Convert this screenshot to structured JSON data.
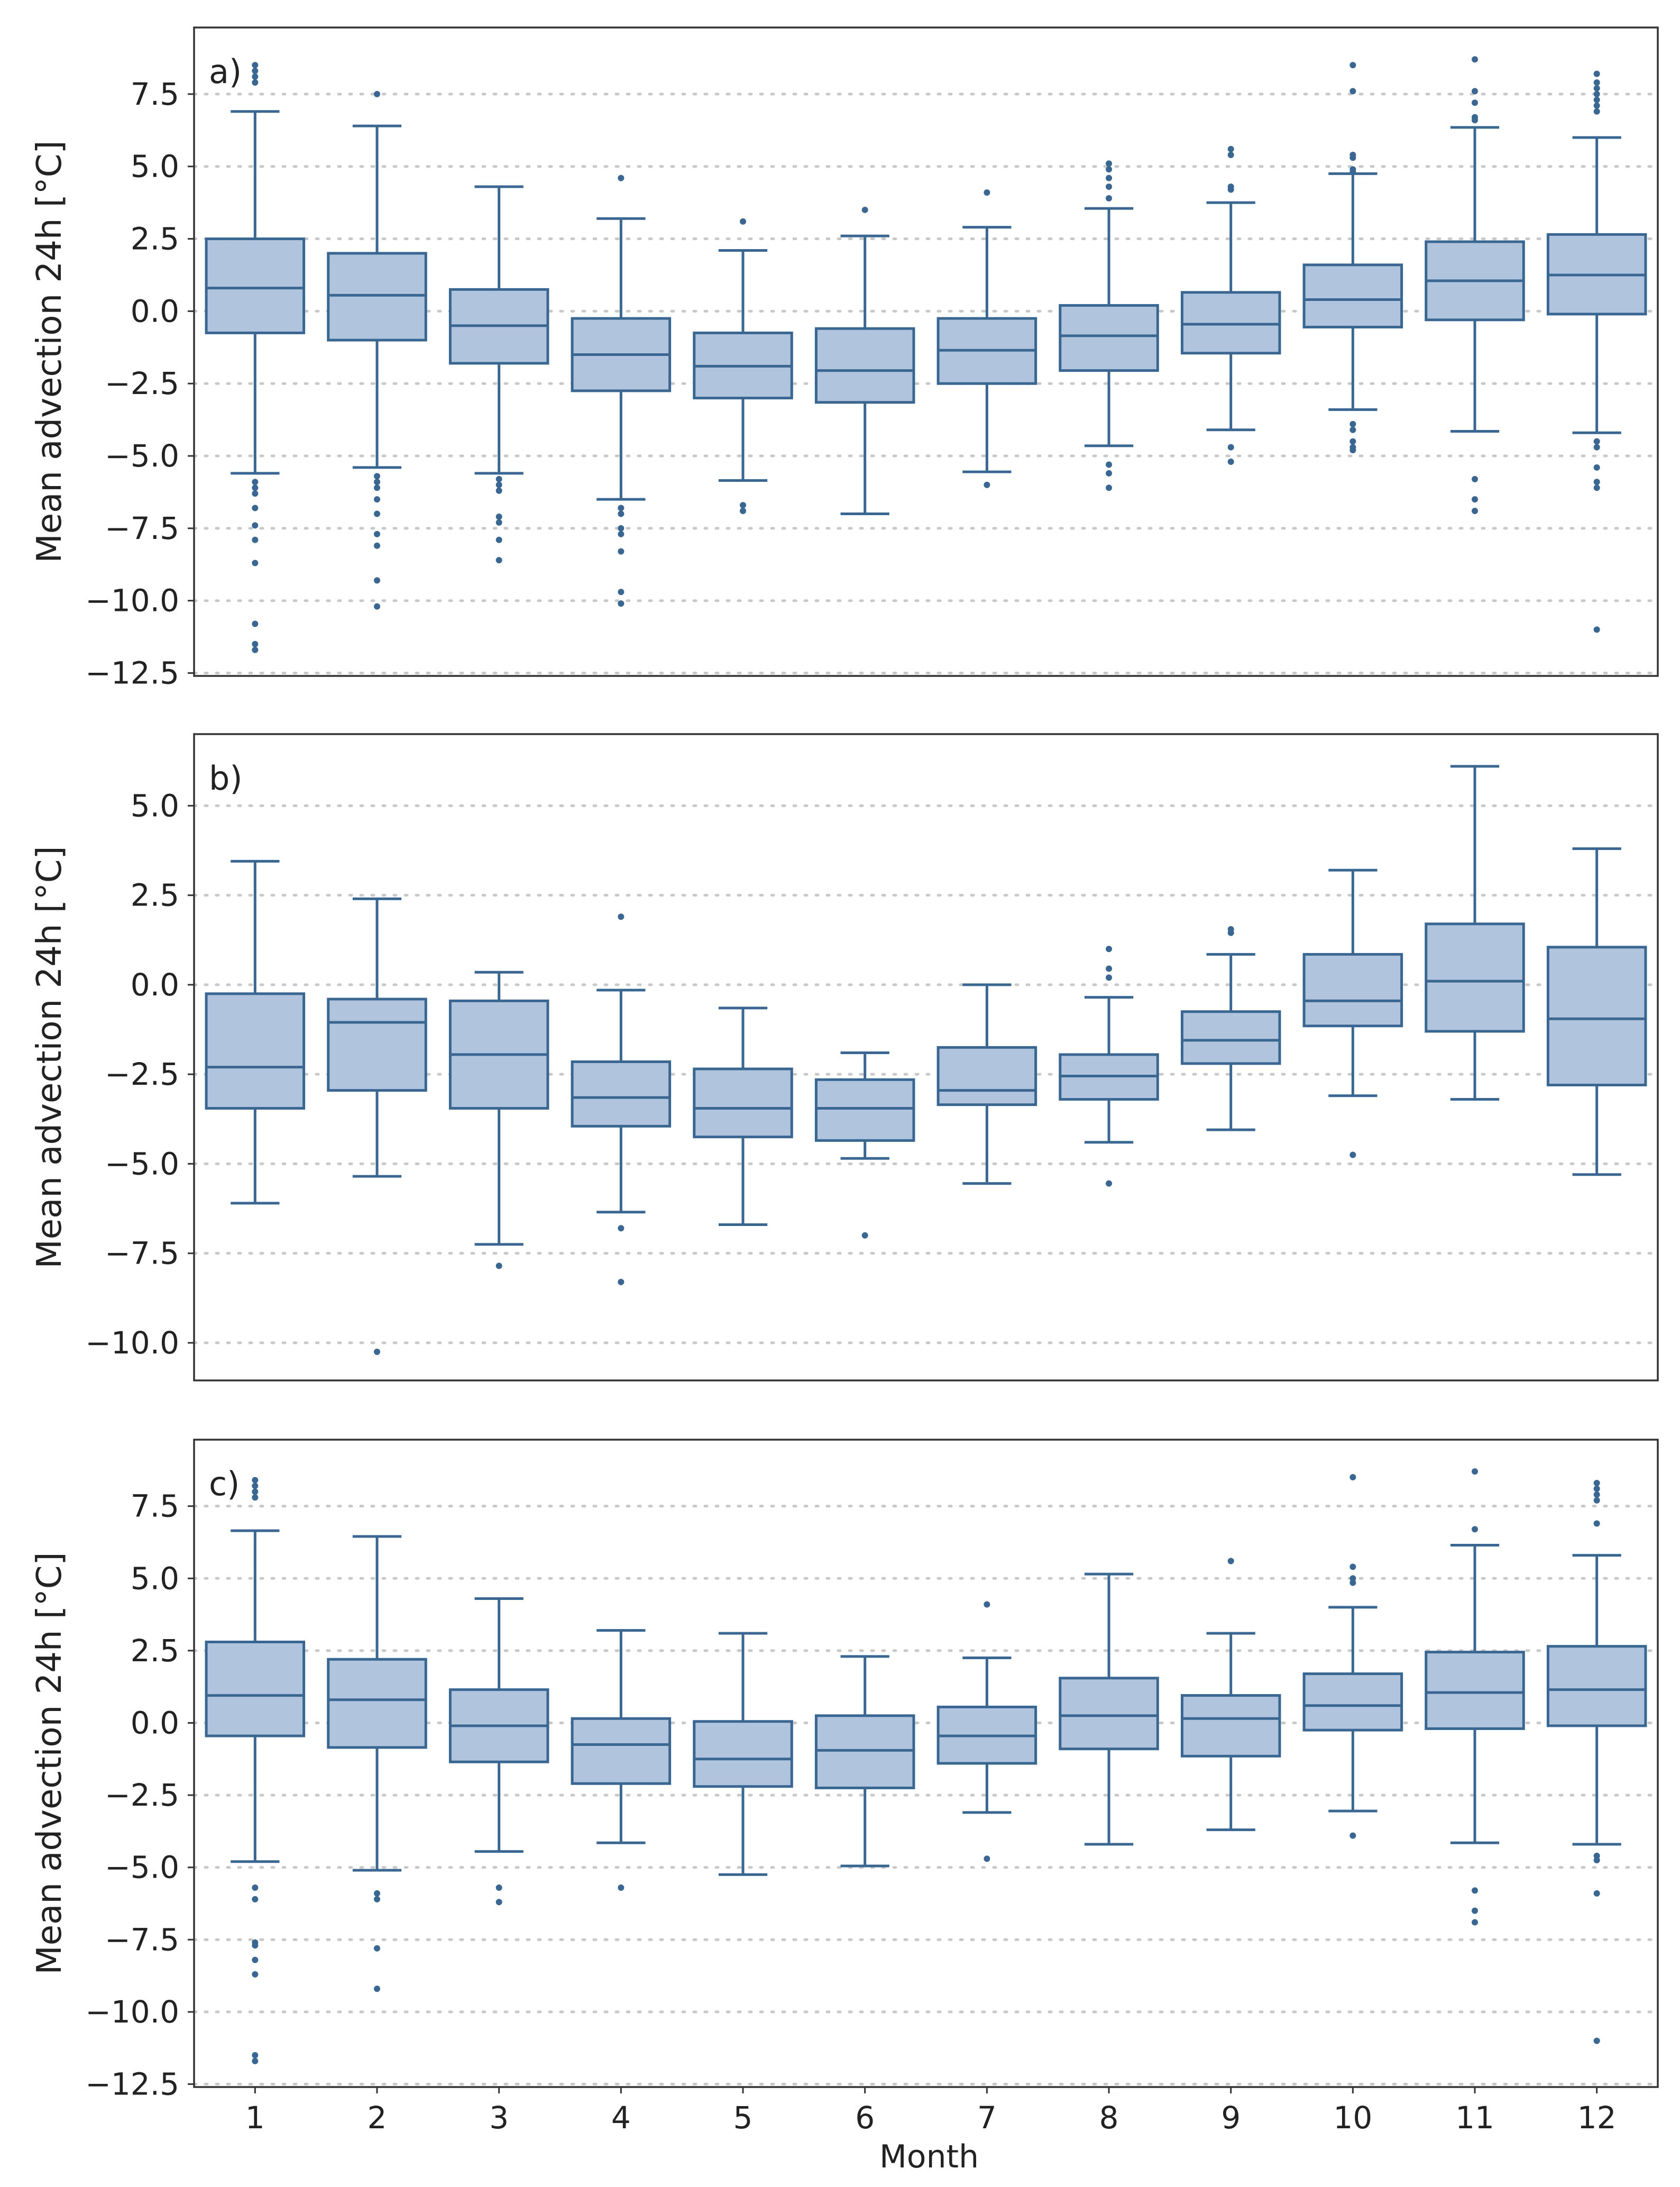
{
  "figure": {
    "xlabel": "Month",
    "colors": {
      "box_fill": "#b0c4de",
      "line": "#3a6791",
      "grid": "#c8c8c8",
      "frame": "#333333"
    }
  },
  "chart_data": [
    {
      "type": "boxplot",
      "panel_label": "a)",
      "ylabel": "Mean advection 24h [°C]",
      "xlabel": "",
      "ylim": [
        -12.6,
        9.8
      ],
      "yticks": [
        7.5,
        5.0,
        2.5,
        0.0,
        -2.5,
        -5.0,
        -7.5,
        -10.0,
        -12.5
      ],
      "ytick_labels": [
        "7.5",
        "5.0",
        "2.5",
        "0.0",
        "−2.5",
        "−5.0",
        "−7.5",
        "−10.0",
        "−12.5"
      ],
      "grid": "horizontal-dotted",
      "categories": [
        "1",
        "2",
        "3",
        "4",
        "5",
        "6",
        "7",
        "8",
        "9",
        "10",
        "11",
        "12"
      ],
      "boxes": [
        {
          "whislo": -5.6,
          "q1": -0.75,
          "med": 0.8,
          "q3": 2.5,
          "whishi": 6.9,
          "fliers": [
            8.5,
            8.3,
            8.1,
            7.9,
            -5.9,
            -6.1,
            -6.3,
            -6.8,
            -7.4,
            -7.9,
            -8.7,
            -10.8,
            -11.5,
            -11.7
          ]
        },
        {
          "whislo": -5.4,
          "q1": -1.0,
          "med": 0.55,
          "q3": 2.0,
          "whishi": 6.4,
          "fliers": [
            7.5,
            -5.7,
            -5.9,
            -6.1,
            -6.5,
            -7.0,
            -7.7,
            -8.1,
            -9.3,
            -10.2
          ]
        },
        {
          "whislo": -5.6,
          "q1": -1.8,
          "med": -0.5,
          "q3": 0.75,
          "whishi": 4.3,
          "fliers": [
            -5.8,
            -6.0,
            -6.2,
            -7.1,
            -7.3,
            -7.9,
            -8.6
          ]
        },
        {
          "whislo": -6.5,
          "q1": -2.75,
          "med": -1.5,
          "q3": -0.25,
          "whishi": 3.2,
          "fliers": [
            4.6,
            -6.8,
            -7.0,
            -7.5,
            -7.7,
            -8.3,
            -9.7,
            -10.1
          ]
        },
        {
          "whislo": -5.85,
          "q1": -3.0,
          "med": -1.9,
          "q3": -0.75,
          "whishi": 2.1,
          "fliers": [
            3.1,
            -6.7,
            -6.9
          ]
        },
        {
          "whislo": -7.0,
          "q1": -3.15,
          "med": -2.05,
          "q3": -0.6,
          "whishi": 2.6,
          "fliers": [
            3.5
          ]
        },
        {
          "whislo": -5.55,
          "q1": -2.5,
          "med": -1.35,
          "q3": -0.25,
          "whishi": 2.9,
          "fliers": [
            4.1,
            -6.0
          ]
        },
        {
          "whislo": -4.65,
          "q1": -2.05,
          "med": -0.85,
          "q3": 0.2,
          "whishi": 3.55,
          "fliers": [
            3.9,
            4.3,
            4.6,
            4.9,
            5.1,
            -5.3,
            -5.6,
            -6.1
          ]
        },
        {
          "whislo": -4.1,
          "q1": -1.45,
          "med": -0.45,
          "q3": 0.65,
          "whishi": 3.75,
          "fliers": [
            4.2,
            4.3,
            5.4,
            5.6,
            -4.7,
            -5.2
          ]
        },
        {
          "whislo": -3.4,
          "q1": -0.55,
          "med": 0.4,
          "q3": 1.6,
          "whishi": 4.75,
          "fliers": [
            4.8,
            4.9,
            5.3,
            5.4,
            7.6,
            8.5,
            -3.9,
            -4.1,
            -4.5,
            -4.7,
            -4.8
          ]
        },
        {
          "whislo": -4.15,
          "q1": -0.3,
          "med": 1.05,
          "q3": 2.4,
          "whishi": 6.35,
          "fliers": [
            6.6,
            6.7,
            7.2,
            7.6,
            8.7,
            -5.8,
            -6.5,
            -6.9
          ]
        },
        {
          "whislo": -4.2,
          "q1": -0.1,
          "med": 1.25,
          "q3": 2.65,
          "whishi": 6.0,
          "fliers": [
            6.9,
            7.1,
            7.3,
            7.5,
            7.7,
            7.9,
            8.2,
            -4.5,
            -4.7,
            -5.4,
            -5.9,
            -6.1,
            -11.0
          ]
        }
      ]
    },
    {
      "type": "boxplot",
      "panel_label": "b)",
      "ylabel": "Mean advection 24h [°C]",
      "xlabel": "",
      "ylim": [
        -11.05,
        7.0
      ],
      "yticks": [
        5.0,
        2.5,
        0.0,
        -2.5,
        -5.0,
        -7.5,
        -10.0
      ],
      "ytick_labels": [
        "5.0",
        "2.5",
        "0.0",
        "−2.5",
        "−5.0",
        "−7.5",
        "−10.0"
      ],
      "grid": "horizontal-dotted",
      "categories": [
        "1",
        "2",
        "3",
        "4",
        "5",
        "6",
        "7",
        "8",
        "9",
        "10",
        "11",
        "12"
      ],
      "boxes": [
        {
          "whislo": -6.1,
          "q1": -3.45,
          "med": -2.3,
          "q3": -0.25,
          "whishi": 3.45,
          "fliers": []
        },
        {
          "whislo": -5.35,
          "q1": -2.95,
          "med": -1.05,
          "q3": -0.4,
          "whishi": 2.4,
          "fliers": [
            -10.25
          ]
        },
        {
          "whislo": -7.25,
          "q1": -3.45,
          "med": -1.95,
          "q3": -0.45,
          "whishi": 0.35,
          "fliers": [
            -7.85
          ]
        },
        {
          "whislo": -6.35,
          "q1": -3.95,
          "med": -3.15,
          "q3": -2.15,
          "whishi": -0.15,
          "fliers": [
            1.9,
            -6.8,
            -8.3
          ]
        },
        {
          "whislo": -6.7,
          "q1": -4.25,
          "med": -3.45,
          "q3": -2.35,
          "whishi": -0.65,
          "fliers": []
        },
        {
          "whislo": -4.85,
          "q1": -4.35,
          "med": -3.45,
          "q3": -2.65,
          "whishi": -1.9,
          "fliers": [
            -7.0
          ]
        },
        {
          "whislo": -5.55,
          "q1": -3.35,
          "med": -2.95,
          "q3": -1.75,
          "whishi": 0.0,
          "fliers": []
        },
        {
          "whislo": -4.4,
          "q1": -3.2,
          "med": -2.55,
          "q3": -1.95,
          "whishi": -0.35,
          "fliers": [
            0.2,
            0.45,
            1.0,
            -5.55
          ]
        },
        {
          "whislo": -4.05,
          "q1": -2.2,
          "med": -1.55,
          "q3": -0.75,
          "whishi": 0.85,
          "fliers": [
            1.45,
            1.55
          ]
        },
        {
          "whislo": -3.1,
          "q1": -1.15,
          "med": -0.45,
          "q3": 0.85,
          "whishi": 3.2,
          "fliers": [
            -4.75
          ]
        },
        {
          "whislo": -3.2,
          "q1": -1.3,
          "med": 0.1,
          "q3": 1.7,
          "whishi": 6.1,
          "fliers": []
        },
        {
          "whislo": -5.3,
          "q1": -2.8,
          "med": -0.95,
          "q3": 1.05,
          "whishi": 3.8,
          "fliers": []
        }
      ]
    },
    {
      "type": "boxplot",
      "panel_label": "c)",
      "ylabel": "Mean advection 24h [°C]",
      "xlabel": "Month",
      "ylim": [
        -12.6,
        9.8
      ],
      "yticks": [
        7.5,
        5.0,
        2.5,
        0.0,
        -2.5,
        -5.0,
        -7.5,
        -10.0,
        -12.5
      ],
      "ytick_labels": [
        "7.5",
        "5.0",
        "2.5",
        "0.0",
        "−2.5",
        "−5.0",
        "−7.5",
        "−10.0",
        "−12.5"
      ],
      "grid": "horizontal-dotted",
      "categories": [
        "1",
        "2",
        "3",
        "4",
        "5",
        "6",
        "7",
        "8",
        "9",
        "10",
        "11",
        "12"
      ],
      "boxes": [
        {
          "whislo": -4.8,
          "q1": -0.45,
          "med": 0.95,
          "q3": 2.8,
          "whishi": 6.65,
          "fliers": [
            8.4,
            8.2,
            8.0,
            7.8,
            -5.7,
            -6.1,
            -7.6,
            -7.7,
            -8.2,
            -8.7,
            -11.5,
            -11.7
          ]
        },
        {
          "whislo": -5.1,
          "q1": -0.85,
          "med": 0.8,
          "q3": 2.2,
          "whishi": 6.45,
          "fliers": [
            -5.9,
            -6.1,
            -7.8,
            -9.2
          ]
        },
        {
          "whislo": -4.45,
          "q1": -1.35,
          "med": -0.1,
          "q3": 1.15,
          "whishi": 4.3,
          "fliers": [
            -5.7,
            -6.2
          ]
        },
        {
          "whislo": -4.15,
          "q1": -2.1,
          "med": -0.75,
          "q3": 0.15,
          "whishi": 3.2,
          "fliers": [
            -5.7
          ]
        },
        {
          "whislo": -5.25,
          "q1": -2.2,
          "med": -1.25,
          "q3": 0.05,
          "whishi": 3.1,
          "fliers": []
        },
        {
          "whislo": -4.95,
          "q1": -2.25,
          "med": -0.95,
          "q3": 0.25,
          "whishi": 2.3,
          "fliers": []
        },
        {
          "whislo": -3.1,
          "q1": -1.4,
          "med": -0.45,
          "q3": 0.55,
          "whishi": 2.25,
          "fliers": [
            4.1,
            -4.7
          ]
        },
        {
          "whislo": -4.2,
          "q1": -0.9,
          "med": 0.25,
          "q3": 1.55,
          "whishi": 5.15,
          "fliers": []
        },
        {
          "whislo": -3.7,
          "q1": -1.15,
          "med": 0.15,
          "q3": 0.95,
          "whishi": 3.1,
          "fliers": [
            5.6
          ]
        },
        {
          "whislo": -3.05,
          "q1": -0.25,
          "med": 0.6,
          "q3": 1.7,
          "whishi": 4.0,
          "fliers": [
            4.85,
            5.0,
            5.4,
            8.5,
            -3.9
          ]
        },
        {
          "whislo": -4.15,
          "q1": -0.2,
          "med": 1.05,
          "q3": 2.45,
          "whishi": 6.15,
          "fliers": [
            6.7,
            8.7,
            -5.8,
            -6.5,
            -6.9
          ]
        },
        {
          "whislo": -4.2,
          "q1": -0.1,
          "med": 1.15,
          "q3": 2.65,
          "whishi": 5.8,
          "fliers": [
            6.9,
            7.7,
            7.9,
            8.1,
            8.3,
            -4.6,
            -4.75,
            -5.9,
            -11.0
          ]
        }
      ]
    }
  ]
}
